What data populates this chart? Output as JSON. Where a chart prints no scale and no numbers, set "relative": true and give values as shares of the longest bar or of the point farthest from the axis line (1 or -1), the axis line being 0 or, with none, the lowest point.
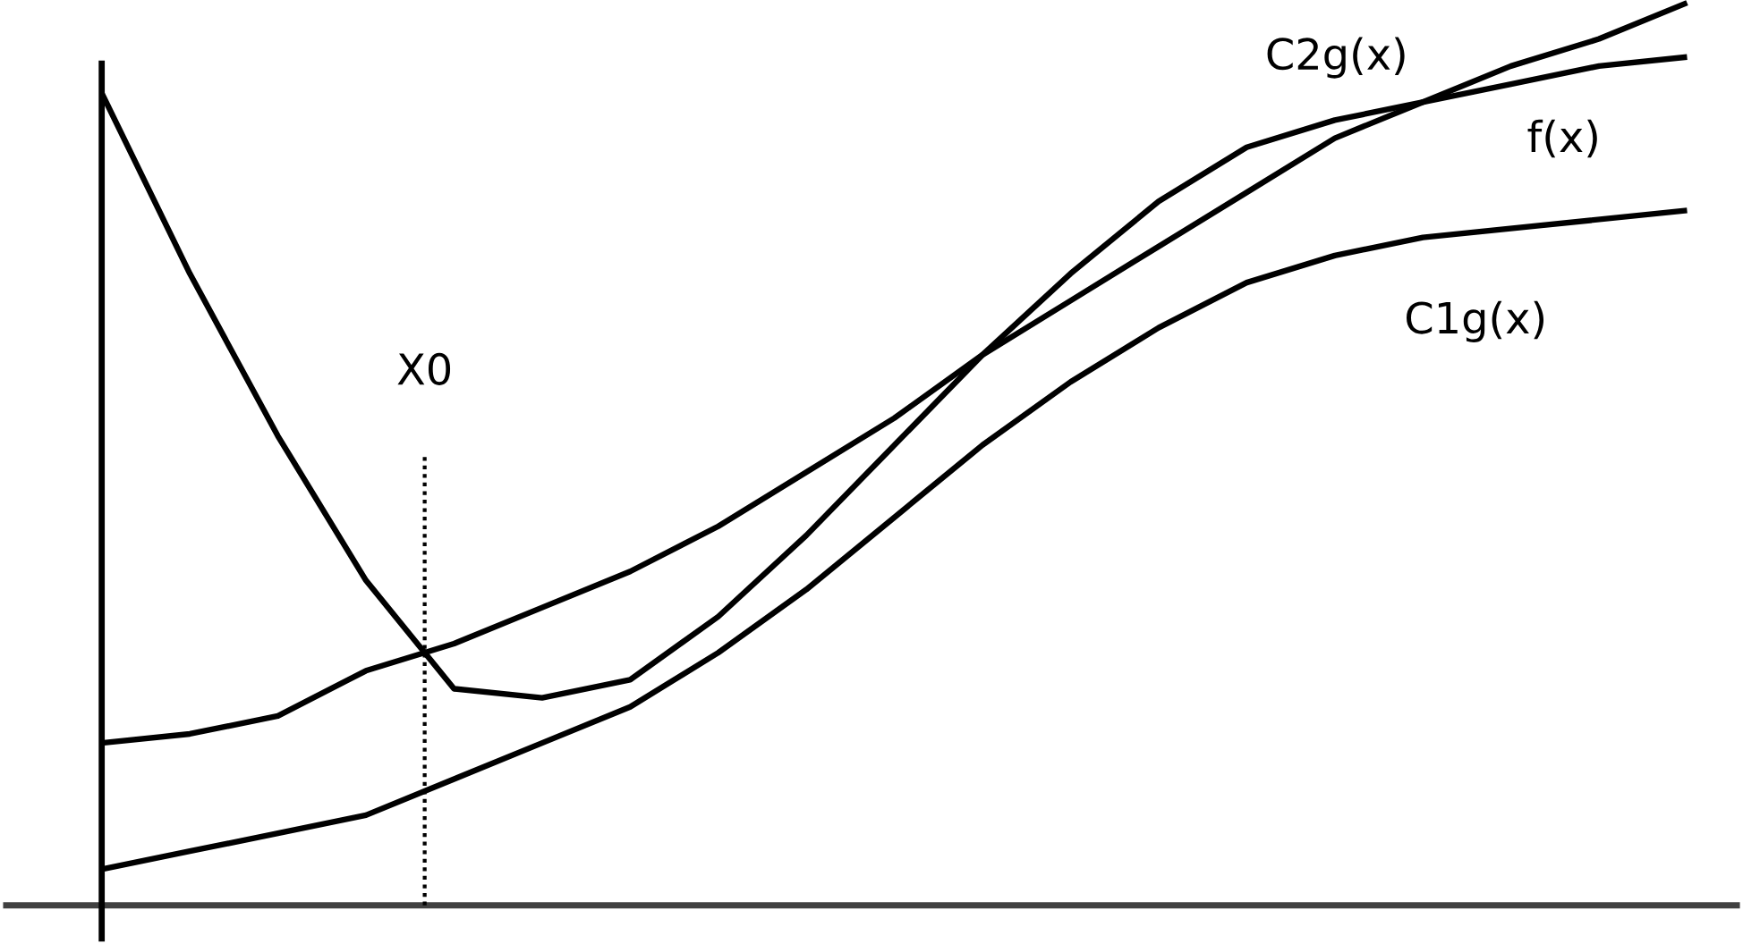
{
  "chart_data": {
    "type": "line",
    "relative": true,
    "grid": false,
    "legend": false,
    "marker": "none",
    "line_style": "solid",
    "categories": [
      null,
      null,
      null,
      null,
      null,
      null,
      null,
      null,
      null,
      null,
      null,
      null,
      null,
      null,
      null,
      null,
      null,
      null,
      null
    ],
    "series": [
      {
        "name": "C2g(x)",
        "color": "#000000",
        "values": [
          0.18,
          0.19,
          0.21,
          0.26,
          0.29,
          0.33,
          0.37,
          0.42,
          0.48,
          0.54,
          0.61,
          0.67,
          0.73,
          0.79,
          0.85,
          0.89,
          0.93,
          0.96,
          1.0
        ]
      },
      {
        "name": "f(x)",
        "color": "#000000",
        "values": [
          0.9,
          0.7,
          0.52,
          0.36,
          0.24,
          0.23,
          0.25,
          0.32,
          0.41,
          0.51,
          0.61,
          0.7,
          0.78,
          0.84,
          0.87,
          0.89,
          0.91,
          0.93,
          0.94
        ]
      },
      {
        "name": "C1g(x)",
        "color": "#000000",
        "values": [
          0.04,
          0.06,
          0.08,
          0.1,
          0.14,
          0.18,
          0.22,
          0.28,
          0.35,
          0.43,
          0.51,
          0.58,
          0.64,
          0.69,
          0.72,
          0.74,
          0.75,
          0.76,
          0.77
        ]
      }
    ],
    "annotations": [
      "X0"
    ]
  }
}
